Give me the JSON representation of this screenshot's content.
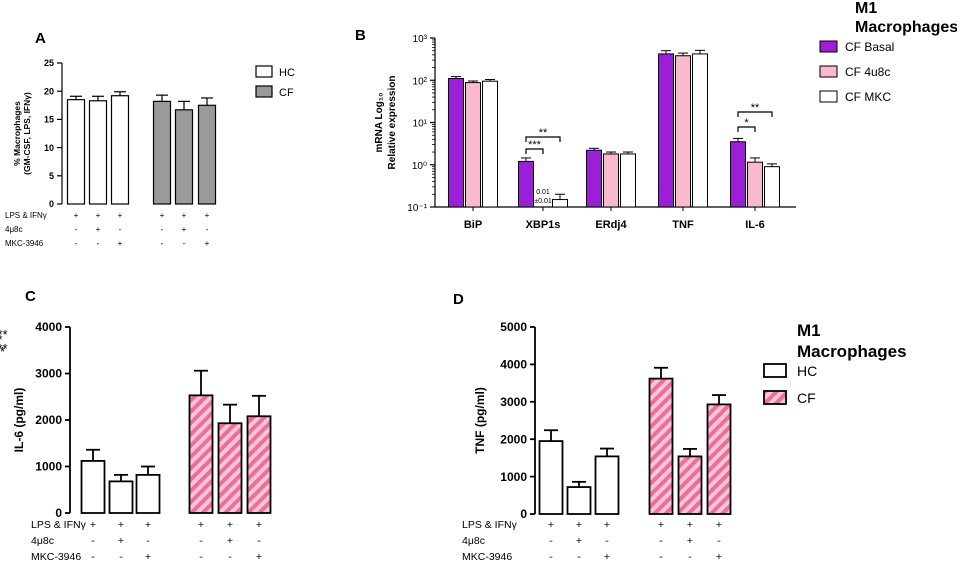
{
  "colors": {
    "purple": "#9b1fd8",
    "pink": "#f9b9cf",
    "gray": "#9a9a9a",
    "hatch": "#ec6f9b",
    "white": "#ffffff"
  },
  "legends": {
    "A": [
      {
        "label": "HC",
        "style": "white"
      },
      {
        "label": "CF",
        "style": "gray"
      }
    ],
    "B": {
      "title": "M1\nMacrophages",
      "items": [
        {
          "label": "CF Basal",
          "style": "purple"
        },
        {
          "label": "CF 4u8c",
          "style": "pink"
        },
        {
          "label": "CF MKC",
          "style": "white"
        }
      ]
    },
    "D": {
      "title": "M1\nMacrophages",
      "items": [
        {
          "label": "HC",
          "style": "white"
        },
        {
          "label": "CF",
          "style": "hatch"
        }
      ]
    }
  },
  "treatment_labels": [
    "LPS & IFNγ",
    "4μ8c",
    "MKC-3946"
  ],
  "treatment_signs": [
    [
      "+",
      "+",
      "+",
      "+",
      "+",
      "+"
    ],
    [
      "-",
      "+",
      "-",
      "-",
      "+",
      "-"
    ],
    [
      "-",
      "-",
      "+",
      "-",
      "-",
      "+"
    ]
  ],
  "chart_data": [
    {
      "panel": "A",
      "type": "bar",
      "ylabel": "% Macrophages\n(GM-CSF, LPS, IFNγ)",
      "ylim": [
        0,
        25
      ],
      "yticks": [
        "0",
        "5",
        "10",
        "15",
        "20",
        "25"
      ],
      "groups": [
        "HC",
        "CF"
      ],
      "values": [
        18.5,
        18.3,
        19.2,
        18.2,
        16.7,
        17.5
      ],
      "errors": [
        0.6,
        0.8,
        0.7,
        1.1,
        1.5,
        1.3
      ],
      "bar_groups": [
        "HC",
        "HC",
        "HC",
        "CF",
        "CF",
        "CF"
      ]
    },
    {
      "panel": "B",
      "type": "bar",
      "scale": "log",
      "ylabel": "mRNA Log₁₀\nRelative expression",
      "ylim": [
        0.1,
        1000
      ],
      "yticks": [
        "10⁻¹",
        "10⁰",
        "10¹",
        "10²",
        "10³"
      ],
      "categories": [
        "BiP",
        "XBP1s",
        "ERdj4",
        "TNF",
        "IL-6"
      ],
      "series": [
        {
          "name": "CF Basal",
          "values": [
            110,
            1.2,
            2.2,
            420,
            3.5
          ],
          "errors": [
            12,
            0.25,
            0.25,
            80,
            0.7
          ]
        },
        {
          "name": "CF 4u8c",
          "values": [
            88,
            null,
            1.8,
            380,
            1.15
          ],
          "errors": [
            8,
            null,
            0.2,
            60,
            0.3
          ]
        },
        {
          "name": "CF MKC",
          "values": [
            95,
            0.15,
            1.8,
            420,
            0.9
          ],
          "errors": [
            9,
            0.05,
            0.2,
            90,
            0.15
          ]
        }
      ],
      "annotations": [
        "0.01\n±0.01"
      ],
      "significance": [
        {
          "category": "XBP1s",
          "label": "***"
        },
        {
          "category": "XBP1s",
          "label": "**"
        },
        {
          "category": "IL-6",
          "label": "*"
        },
        {
          "category": "IL-6",
          "label": "**"
        }
      ]
    },
    {
      "panel": "C",
      "type": "bar",
      "ylabel": "IL-6 (pg/ml)",
      "ylim": [
        0,
        4000
      ],
      "yticks": [
        "0",
        "1000",
        "2000",
        "3000",
        "4000"
      ],
      "values": [
        1120,
        680,
        820,
        2530,
        1930,
        2080
      ],
      "errors": [
        240,
        140,
        180,
        530,
        400,
        440
      ],
      "bar_groups": [
        "HC",
        "HC",
        "HC",
        "CF",
        "CF",
        "CF"
      ],
      "significance": [
        {
          "label": "**"
        },
        {
          "label": "*"
        }
      ]
    },
    {
      "panel": "D",
      "type": "bar",
      "ylabel": "TNF (pg/ml)",
      "ylim": [
        0,
        5000
      ],
      "yticks": [
        "0",
        "1000",
        "2000",
        "3000",
        "4000",
        "5000"
      ],
      "values": [
        1950,
        720,
        1540,
        3620,
        1540,
        2930
      ],
      "errors": [
        290,
        140,
        210,
        290,
        200,
        250
      ],
      "bar_groups": [
        "HC",
        "HC",
        "HC",
        "CF",
        "CF",
        "CF"
      ],
      "significance": [
        {
          "label": "***"
        },
        {
          "label": "***"
        }
      ]
    }
  ]
}
